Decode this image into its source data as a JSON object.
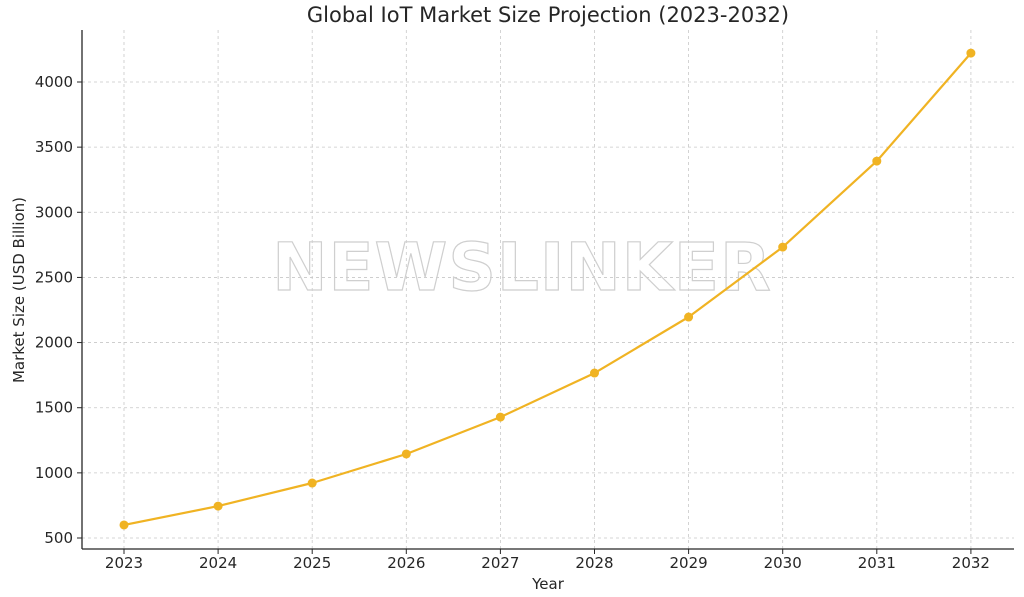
{
  "chart_data": {
    "type": "line",
    "title": "Global IoT Market Size Projection (2023-2032)",
    "xlabel": "Year",
    "ylabel": "Market Size (USD Billion)",
    "categories": [
      "2023",
      "2024",
      "2025",
      "2026",
      "2027",
      "2028",
      "2029",
      "2030",
      "2031",
      "2032"
    ],
    "series": [
      {
        "name": "Market Size",
        "color": "#f0b323",
        "marker": "circle",
        "values": [
          600,
          745,
          922,
          1145,
          1428,
          1766,
          2196,
          2733,
          3393,
          4222
        ]
      }
    ],
    "yticks": [
      500,
      1000,
      1500,
      2000,
      2500,
      3000,
      3500,
      4000
    ],
    "ylim": [
      430,
      4370
    ],
    "grid": true,
    "grid_style": "dashed",
    "legend": "none"
  },
  "watermark": "NEWSLINKER"
}
